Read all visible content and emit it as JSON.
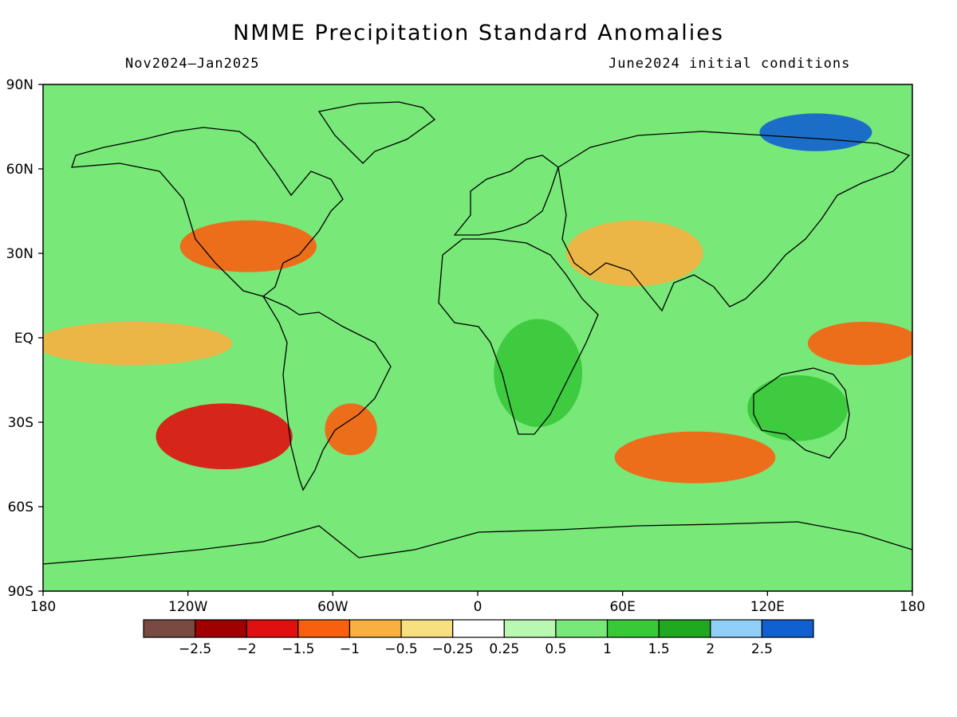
{
  "title": "NMME Precipitation Standard Anomalies",
  "subtitle_left": "Nov2024–Jan2025",
  "subtitle_right": "June2024 initial conditions",
  "map": {
    "lon_range": [
      -180,
      180
    ],
    "lat_range": [
      -90,
      90
    ],
    "lat_tick_labels": [
      "90N",
      "60N",
      "30N",
      "EQ",
      "30S",
      "60S",
      "90S"
    ],
    "lat_tick_values": [
      90,
      60,
      30,
      0,
      -30,
      -60,
      -90
    ],
    "lon_tick_labels": [
      "180",
      "120W",
      "60W",
      "0",
      "60E",
      "120E",
      "180"
    ],
    "lon_tick_values": [
      -180,
      -120,
      -60,
      0,
      60,
      120,
      180
    ]
  },
  "colorbar": {
    "colors": [
      "#7a4a40",
      "#a00000",
      "#e01010",
      "#f86010",
      "#f8b040",
      "#f8e080",
      "#ffffff",
      "#b8f8b0",
      "#78e878",
      "#38c838",
      "#20a820",
      "#90d0f8",
      "#1060d0"
    ],
    "labels": [
      "−2.5",
      "−2",
      "−1.5",
      "−1",
      "−0.5",
      "−0.25",
      "0.25",
      "0.5",
      "1",
      "1.5",
      "2",
      "2.5"
    ]
  },
  "anomaly_regions": [
    {
      "name": "east-pacific-dry",
      "value": -1,
      "lon": [
        -180,
        -105
      ],
      "lat": [
        -8,
        4
      ]
    },
    {
      "name": "west-pacific-dry",
      "value": -1.5,
      "lon": [
        140,
        180
      ],
      "lat": [
        -8,
        4
      ]
    },
    {
      "name": "south-america-dry",
      "value": -1.5,
      "lon": [
        -60,
        -45
      ],
      "lat": [
        -40,
        -25
      ]
    },
    {
      "name": "africa-wet",
      "value": 1,
      "lon": [
        10,
        40
      ],
      "lat": [
        -30,
        5
      ]
    },
    {
      "name": "us-south-dry",
      "value": -1.5,
      "lon": [
        -120,
        -70
      ],
      "lat": [
        25,
        40
      ]
    },
    {
      "name": "middle-east-dry",
      "value": -1,
      "lon": [
        40,
        90
      ],
      "lat": [
        20,
        40
      ]
    },
    {
      "name": "siberia-wet",
      "value": 2.5,
      "lon": [
        120,
        160
      ],
      "lat": [
        68,
        78
      ]
    },
    {
      "name": "australia-wet",
      "value": 1,
      "lon": [
        115,
        150
      ],
      "lat": [
        -35,
        -15
      ]
    },
    {
      "name": "southern-ocean-dry",
      "value": -1.5,
      "lon": [
        60,
        120
      ],
      "lat": [
        -50,
        -35
      ]
    },
    {
      "name": "southeast-pacific-dry",
      "value": -2,
      "lon": [
        -130,
        -80
      ],
      "lat": [
        -45,
        -25
      ]
    }
  ]
}
